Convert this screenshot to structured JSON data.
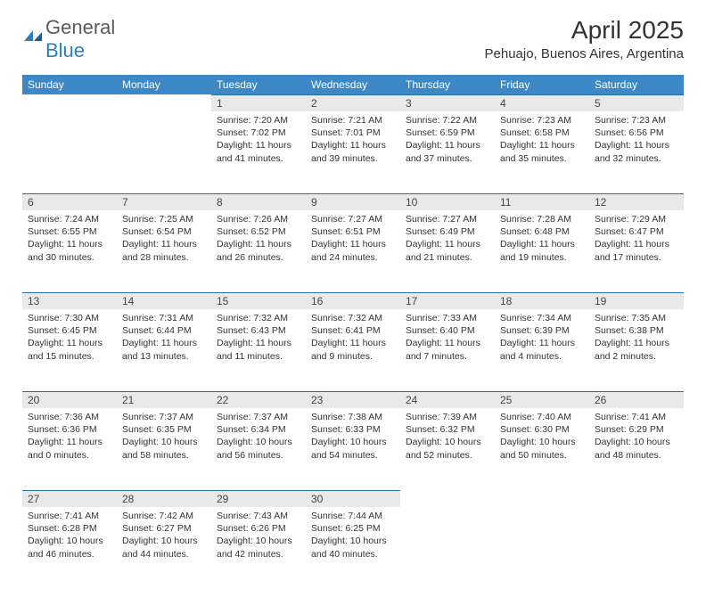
{
  "logo": {
    "word1": "General",
    "word2": "Blue"
  },
  "title": "April 2025",
  "location": "Pehuajo, Buenos Aires, Argentina",
  "colors": {
    "header_bg": "#3c88c6",
    "header_text": "#ffffff",
    "daynum_bg": "#e9e9e9",
    "border": "#2b6fa3",
    "text": "#333333",
    "logo_gray": "#5a5a5a",
    "logo_blue": "#2b7fbf",
    "background": "#ffffff"
  },
  "day_header_fontsize": 12,
  "daynum_fontsize": 12,
  "body_fontsize": 10.5,
  "title_fontsize": 28,
  "location_fontsize": 15,
  "days_of_week": [
    "Sunday",
    "Monday",
    "Tuesday",
    "Wednesday",
    "Thursday",
    "Friday",
    "Saturday"
  ],
  "weeks": [
    [
      null,
      null,
      {
        "n": "1",
        "sr": "7:20 AM",
        "ss": "7:02 PM",
        "dl": "11 hours and 41 minutes."
      },
      {
        "n": "2",
        "sr": "7:21 AM",
        "ss": "7:01 PM",
        "dl": "11 hours and 39 minutes."
      },
      {
        "n": "3",
        "sr": "7:22 AM",
        "ss": "6:59 PM",
        "dl": "11 hours and 37 minutes."
      },
      {
        "n": "4",
        "sr": "7:23 AM",
        "ss": "6:58 PM",
        "dl": "11 hours and 35 minutes."
      },
      {
        "n": "5",
        "sr": "7:23 AM",
        "ss": "6:56 PM",
        "dl": "11 hours and 32 minutes."
      }
    ],
    [
      {
        "n": "6",
        "sr": "7:24 AM",
        "ss": "6:55 PM",
        "dl": "11 hours and 30 minutes."
      },
      {
        "n": "7",
        "sr": "7:25 AM",
        "ss": "6:54 PM",
        "dl": "11 hours and 28 minutes."
      },
      {
        "n": "8",
        "sr": "7:26 AM",
        "ss": "6:52 PM",
        "dl": "11 hours and 26 minutes."
      },
      {
        "n": "9",
        "sr": "7:27 AM",
        "ss": "6:51 PM",
        "dl": "11 hours and 24 minutes."
      },
      {
        "n": "10",
        "sr": "7:27 AM",
        "ss": "6:49 PM",
        "dl": "11 hours and 21 minutes."
      },
      {
        "n": "11",
        "sr": "7:28 AM",
        "ss": "6:48 PM",
        "dl": "11 hours and 19 minutes."
      },
      {
        "n": "12",
        "sr": "7:29 AM",
        "ss": "6:47 PM",
        "dl": "11 hours and 17 minutes."
      }
    ],
    [
      {
        "n": "13",
        "sr": "7:30 AM",
        "ss": "6:45 PM",
        "dl": "11 hours and 15 minutes."
      },
      {
        "n": "14",
        "sr": "7:31 AM",
        "ss": "6:44 PM",
        "dl": "11 hours and 13 minutes."
      },
      {
        "n": "15",
        "sr": "7:32 AM",
        "ss": "6:43 PM",
        "dl": "11 hours and 11 minutes."
      },
      {
        "n": "16",
        "sr": "7:32 AM",
        "ss": "6:41 PM",
        "dl": "11 hours and 9 minutes."
      },
      {
        "n": "17",
        "sr": "7:33 AM",
        "ss": "6:40 PM",
        "dl": "11 hours and 7 minutes."
      },
      {
        "n": "18",
        "sr": "7:34 AM",
        "ss": "6:39 PM",
        "dl": "11 hours and 4 minutes."
      },
      {
        "n": "19",
        "sr": "7:35 AM",
        "ss": "6:38 PM",
        "dl": "11 hours and 2 minutes."
      }
    ],
    [
      {
        "n": "20",
        "sr": "7:36 AM",
        "ss": "6:36 PM",
        "dl": "11 hours and 0 minutes."
      },
      {
        "n": "21",
        "sr": "7:37 AM",
        "ss": "6:35 PM",
        "dl": "10 hours and 58 minutes."
      },
      {
        "n": "22",
        "sr": "7:37 AM",
        "ss": "6:34 PM",
        "dl": "10 hours and 56 minutes."
      },
      {
        "n": "23",
        "sr": "7:38 AM",
        "ss": "6:33 PM",
        "dl": "10 hours and 54 minutes."
      },
      {
        "n": "24",
        "sr": "7:39 AM",
        "ss": "6:32 PM",
        "dl": "10 hours and 52 minutes."
      },
      {
        "n": "25",
        "sr": "7:40 AM",
        "ss": "6:30 PM",
        "dl": "10 hours and 50 minutes."
      },
      {
        "n": "26",
        "sr": "7:41 AM",
        "ss": "6:29 PM",
        "dl": "10 hours and 48 minutes."
      }
    ],
    [
      {
        "n": "27",
        "sr": "7:41 AM",
        "ss": "6:28 PM",
        "dl": "10 hours and 46 minutes."
      },
      {
        "n": "28",
        "sr": "7:42 AM",
        "ss": "6:27 PM",
        "dl": "10 hours and 44 minutes."
      },
      {
        "n": "29",
        "sr": "7:43 AM",
        "ss": "6:26 PM",
        "dl": "10 hours and 42 minutes."
      },
      {
        "n": "30",
        "sr": "7:44 AM",
        "ss": "6:25 PM",
        "dl": "10 hours and 40 minutes."
      },
      null,
      null,
      null
    ]
  ],
  "labels": {
    "sunrise": "Sunrise:",
    "sunset": "Sunset:",
    "daylight": "Daylight:"
  }
}
